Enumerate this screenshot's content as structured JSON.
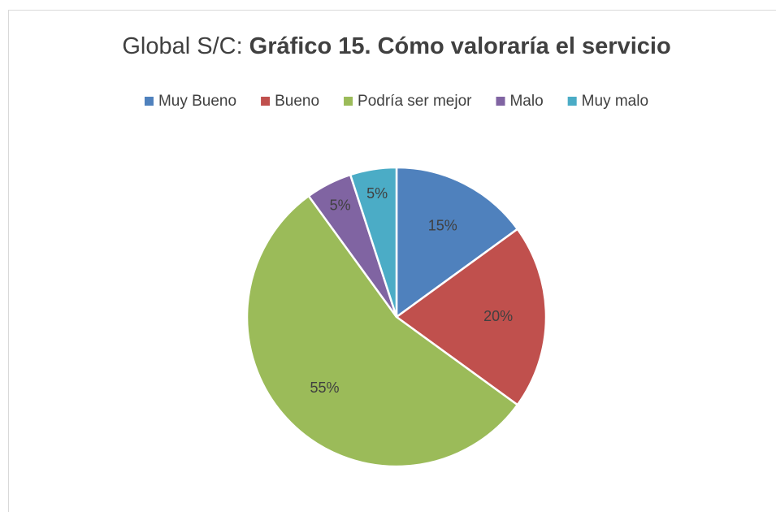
{
  "chart_data": {
    "type": "pie",
    "title": [
      "Global S/C:",
      "Gráfico 15. Cómo valoraría el servicio"
    ],
    "categories": [
      "Muy Bueno",
      "Bueno",
      "Podría ser mejor",
      "Malo",
      "Muy malo"
    ],
    "values": [
      15,
      20,
      55,
      5,
      5
    ],
    "value_labels": [
      "15%",
      "20%",
      "55%",
      "5%",
      "5%"
    ],
    "colors": [
      "#4f81bd",
      "#c0504d",
      "#9bbb59",
      "#8064a2",
      "#4bacc6"
    ],
    "legend": "top"
  }
}
